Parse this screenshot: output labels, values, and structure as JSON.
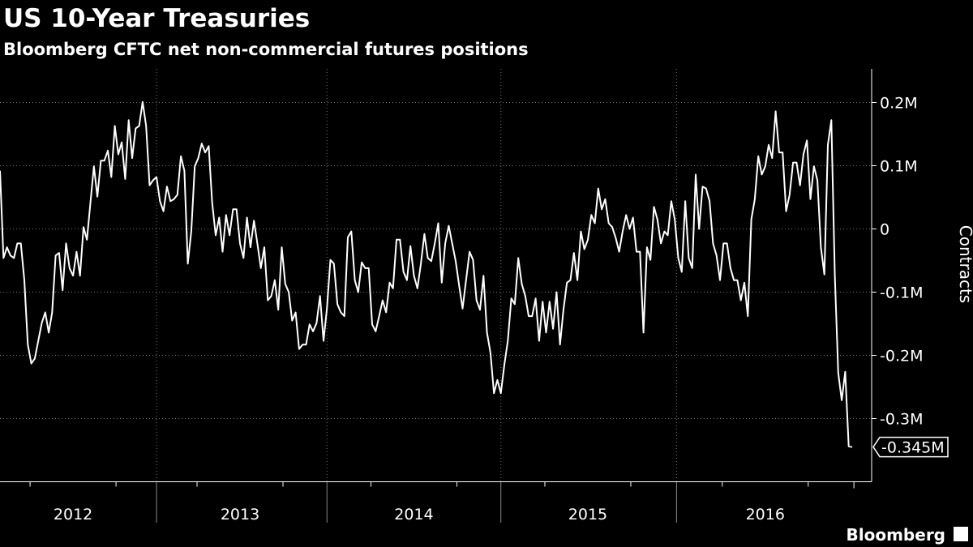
{
  "chart_data": {
    "type": "line",
    "title": "US 10-Year Treasuries",
    "subtitle": "Bloomberg CFTC net non-commercial futures positions",
    "y_label": "Contracts",
    "source": "Bloomberg",
    "color": "#ffffff",
    "background": "#000000",
    "grid": true,
    "categories": [
      null,
      null,
      null,
      null,
      null,
      null,
      null,
      null,
      null,
      null,
      null,
      null,
      null,
      null,
      null,
      null,
      null,
      null,
      null,
      null,
      null,
      "2012",
      null,
      null,
      null,
      null,
      null,
      null,
      null,
      null,
      null,
      null,
      null,
      null,
      null,
      null,
      null,
      null,
      null,
      null,
      null,
      null,
      null,
      null,
      null,
      null,
      null,
      null,
      null,
      null,
      null,
      null,
      null,
      null,
      null,
      null,
      null,
      null,
      null,
      null,
      null,
      null,
      null,
      null,
      null,
      null,
      null,
      null,
      null,
      "2013",
      null,
      null,
      null,
      null,
      null,
      null,
      null,
      null,
      null,
      null,
      null,
      null,
      null,
      null,
      null,
      null,
      null,
      null,
      null,
      null,
      null,
      null,
      null,
      null,
      null,
      null,
      null,
      null,
      null,
      null,
      null,
      null,
      null,
      null,
      null,
      null,
      null,
      null,
      null,
      null,
      null,
      null,
      null,
      null,
      null,
      null,
      null,
      null,
      null,
      "2014",
      null,
      null,
      null,
      null,
      null,
      null,
      null,
      null,
      null,
      null,
      null,
      null,
      null,
      null,
      null,
      null,
      null,
      null,
      null,
      null,
      null,
      null,
      null,
      null,
      null,
      null,
      null,
      null,
      null,
      null,
      null,
      null,
      null,
      null,
      null,
      null,
      null,
      null,
      null,
      null,
      null,
      null,
      null,
      null,
      null,
      null,
      null,
      null,
      null,
      "2015",
      null,
      null,
      null,
      null,
      null,
      null,
      null,
      null,
      null,
      null,
      null,
      null,
      null,
      null,
      null,
      null,
      null,
      null,
      null,
      null,
      null,
      null,
      null,
      null,
      null,
      null,
      null,
      null,
      null,
      null,
      null,
      null,
      null,
      null,
      null,
      null,
      null,
      null,
      null,
      null,
      null,
      null,
      null,
      null,
      null,
      null,
      null,
      null,
      null,
      null,
      "2016",
      null,
      null,
      null,
      null,
      null,
      null,
      null,
      null,
      null,
      null,
      null,
      null,
      null,
      null,
      null,
      null,
      null,
      null,
      null,
      null,
      null,
      null,
      null,
      null,
      null
    ],
    "values": [
      92000,
      -46000,
      -29000,
      -42000,
      -46000,
      -23000,
      -23000,
      -81000,
      -183000,
      -213000,
      -205000,
      -177000,
      -149000,
      -132000,
      -164000,
      -132000,
      -42000,
      -38000,
      -97000,
      -23000,
      -62000,
      -74000,
      -36000,
      -74000,
      3000,
      -17000,
      41000,
      99000,
      51000,
      108000,
      108000,
      124000,
      82000,
      163000,
      118000,
      137000,
      79000,
      172000,
      112000,
      159000,
      163000,
      201000,
      163000,
      69000,
      77000,
      82000,
      44000,
      28000,
      67000,
      44000,
      47000,
      54000,
      115000,
      92000,
      -55000,
      -4000,
      99000,
      112000,
      135000,
      121000,
      131000,
      41000,
      -10000,
      18000,
      -36000,
      22000,
      -10000,
      31000,
      31000,
      -23000,
      -46000,
      18000,
      -29000,
      13000,
      -23000,
      -62000,
      -29000,
      -113000,
      -106000,
      -81000,
      -128000,
      -29000,
      -87000,
      -100000,
      -145000,
      -132000,
      -190000,
      -183000,
      -183000,
      -151000,
      -162000,
      -149000,
      -106000,
      -177000,
      -126000,
      -49000,
      -55000,
      -119000,
      -132000,
      -138000,
      -13000,
      -4000,
      -81000,
      -100000,
      -53000,
      -62000,
      -62000,
      -151000,
      -162000,
      -138000,
      -113000,
      -132000,
      -85000,
      -94000,
      -17000,
      -17000,
      -68000,
      -81000,
      -27000,
      -74000,
      -94000,
      -55000,
      -8000,
      -46000,
      -51000,
      -23000,
      9000,
      -85000,
      -23000,
      5000,
      -23000,
      -51000,
      -90000,
      -126000,
      -81000,
      -36000,
      -49000,
      -113000,
      -128000,
      -74000,
      -164000,
      -196000,
      -260000,
      -239000,
      -260000,
      -215000,
      -177000,
      -110000,
      -119000,
      -46000,
      -87000,
      -106000,
      -138000,
      -138000,
      -110000,
      -177000,
      -115000,
      -164000,
      -115000,
      -158000,
      -100000,
      -183000,
      -128000,
      -85000,
      -81000,
      -38000,
      -81000,
      -4000,
      -32000,
      -17000,
      22000,
      9000,
      64000,
      31000,
      47000,
      9000,
      3000,
      -14000,
      -36000,
      -4000,
      22000,
      0,
      18000,
      -36000,
      -36000,
      -164000,
      -29000,
      -49000,
      35000,
      15000,
      -23000,
      -4000,
      -10000,
      44000,
      15000,
      -46000,
      -68000,
      44000,
      -46000,
      -62000,
      86000,
      0,
      67000,
      64000,
      44000,
      -23000,
      -42000,
      -81000,
      -23000,
      -23000,
      -62000,
      -81000,
      -81000,
      -113000,
      -85000,
      -138000,
      15000,
      47000,
      115000,
      86000,
      99000,
      133000,
      112000,
      186000,
      121000,
      121000,
      28000,
      54000,
      105000,
      105000,
      69000,
      118000,
      140000,
      47000,
      99000,
      77000,
      -29000,
      -72000,
      133000,
      172000,
      -74000,
      -228000,
      -271000,
      -226000,
      -344000,
      -345000
    ],
    "value_labels": [
      null,
      null,
      null,
      null,
      null,
      null,
      null,
      null,
      null,
      null,
      null,
      null,
      null,
      null,
      null,
      null,
      null,
      null,
      null,
      null,
      null,
      null,
      null,
      null,
      null,
      null,
      null,
      null,
      null,
      null,
      null,
      null,
      null,
      null,
      null,
      null,
      null,
      null,
      null,
      null,
      null,
      null,
      null,
      null,
      null,
      null,
      null,
      null,
      null,
      null,
      null,
      null,
      null,
      null,
      null,
      null,
      null,
      null,
      null,
      null,
      null,
      null,
      null,
      null,
      null,
      null,
      null,
      null,
      null,
      null,
      null,
      null,
      null,
      null,
      null,
      null,
      null,
      null,
      null,
      null,
      null,
      null,
      null,
      null,
      null,
      null,
      null,
      null,
      null,
      null,
      null,
      null,
      null,
      null,
      null,
      null,
      null,
      null,
      null,
      null,
      null,
      null,
      null,
      null,
      null,
      null,
      null,
      null,
      null,
      null,
      null,
      null,
      null,
      null,
      null,
      null,
      null,
      null,
      null,
      null,
      null,
      null,
      null,
      null,
      null,
      null,
      null,
      null,
      null,
      null,
      null,
      null,
      null,
      null,
      null,
      null,
      null,
      null,
      null,
      null,
      null,
      null,
      null,
      null,
      null,
      null,
      null,
      null,
      null,
      null,
      null,
      null,
      null,
      null,
      null,
      null,
      null,
      null,
      null,
      null,
      null,
      null,
      null,
      null,
      null,
      null,
      null,
      null,
      null,
      null,
      null,
      null,
      null,
      null,
      null,
      null,
      null,
      null,
      null,
      null,
      null,
      null,
      null,
      null,
      null,
      null,
      null,
      null,
      null,
      null,
      null,
      null,
      null,
      null,
      null,
      null,
      null,
      null,
      null,
      null,
      null,
      null,
      null,
      null,
      null,
      null,
      null,
      null,
      null,
      null,
      null,
      null,
      null,
      null,
      null,
      null,
      null,
      null,
      null,
      null,
      null,
      null,
      null,
      null,
      null,
      null,
      null,
      null,
      null,
      null,
      null,
      null,
      null,
      null,
      null,
      null,
      null,
      null,
      null,
      null,
      null,
      null,
      null,
      null,
      null,
      "-0.345M"
    ],
    "ylim": [
      -400000,
      250000
    ],
    "yticks": [
      {
        "value": 200000,
        "label": "0.2M"
      },
      {
        "value": 100000,
        "label": "0.1M"
      },
      0,
      {
        "value": -100000,
        "label": "-0.1M"
      },
      {
        "value": -200000,
        "label": "-0.2M"
      },
      {
        "value": -300000,
        "label": "-0.3M"
      }
    ]
  }
}
